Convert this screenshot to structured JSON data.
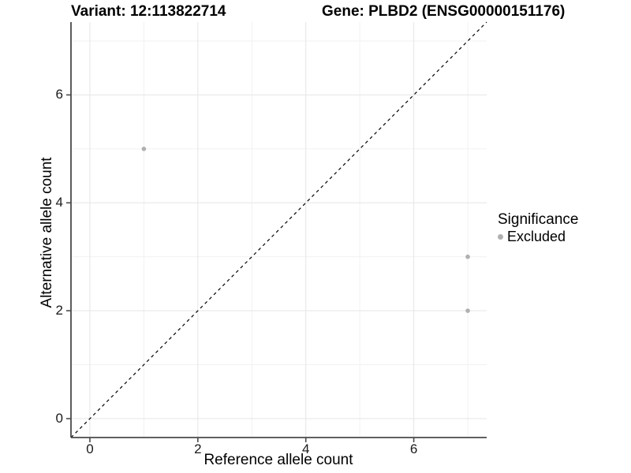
{
  "chart_data": {
    "type": "scatter",
    "title_left": "Variant: 12:113822714",
    "title_right": "Gene: PLBD2 (ENSG00000151176)",
    "xlabel": "Reference allele count",
    "ylabel": "Alternative allele count",
    "xlim": [
      -0.35,
      7.35
    ],
    "ylim": [
      -0.35,
      7.35
    ],
    "x_tick_values": [
      0,
      2,
      4,
      6
    ],
    "y_tick_values": [
      0,
      2,
      4,
      6
    ],
    "x_minor_tick_values": [
      1,
      3,
      5,
      7
    ],
    "y_minor_tick_values": [
      1,
      3,
      5,
      7
    ],
    "grid": true,
    "identity_line": {
      "style": "dashed",
      "slope": 1,
      "intercept": 0
    },
    "series": [
      {
        "name": "Excluded",
        "color": "#b0b0b0",
        "points": [
          {
            "x": 1,
            "y": 5
          },
          {
            "x": 7,
            "y": 3
          },
          {
            "x": 7,
            "y": 2
          }
        ]
      }
    ],
    "legend": {
      "title": "Significance",
      "position": "right",
      "entries": [
        {
          "label": "Excluded",
          "color": "#b0b0b0"
        }
      ]
    },
    "colors": {
      "background": "#ffffff",
      "grid_major": "#e5e5e5",
      "grid_minor": "#f1f1f1",
      "axis_line": "#4a4a4a",
      "tick_mark": "#4a4a4a",
      "identity_line": "#000000",
      "point": "#b0b0b0"
    }
  }
}
